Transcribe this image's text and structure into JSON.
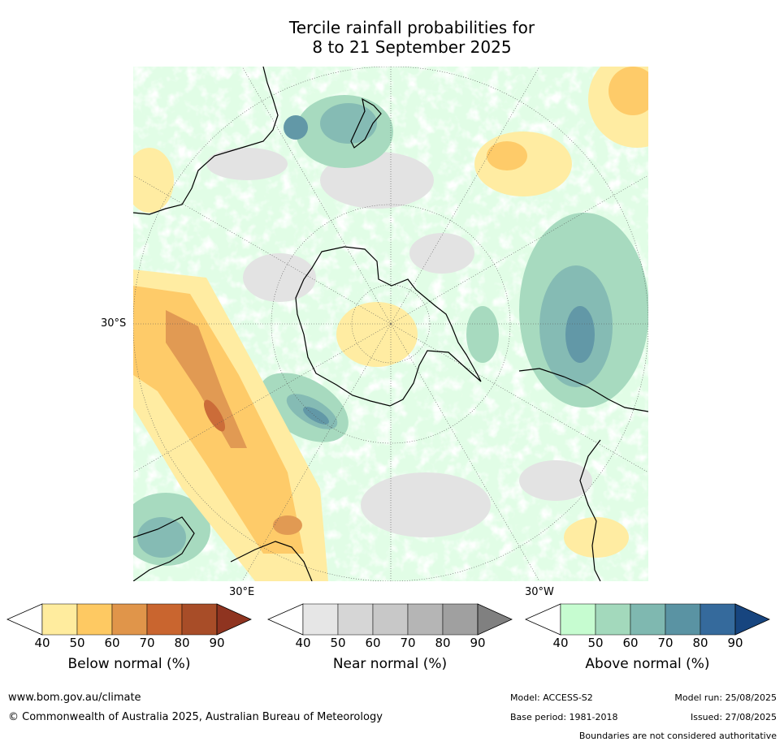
{
  "title": {
    "line1": "Tercile rainfall probabilities for",
    "line2": "8 to 21 September 2025"
  },
  "map": {
    "projection": "south-polar-stereographic",
    "lat_labels": [
      "30°S"
    ],
    "lon_labels": [
      "30°E",
      "30°W"
    ],
    "land_outline_color": "#000000",
    "graticule_color": "#555555"
  },
  "legends": [
    {
      "title": "Below normal (%)",
      "ticks": [
        "40",
        "50",
        "60",
        "70",
        "80",
        "90"
      ],
      "colors": [
        "#ffffff",
        "#ffec9e",
        "#fec962",
        "#e0954a",
        "#c9652f",
        "#a84d28",
        "#8f3420"
      ]
    },
    {
      "title": "Near normal (%)",
      "ticks": [
        "40",
        "50",
        "60",
        "70",
        "80",
        "90"
      ],
      "colors": [
        "#ffffff",
        "#e6e6e6",
        "#d6d6d6",
        "#c8c8c8",
        "#b5b5b5",
        "#a0a0a0",
        "#808080"
      ]
    },
    {
      "title": "Above normal (%)",
      "ticks": [
        "40",
        "50",
        "60",
        "70",
        "80",
        "90"
      ],
      "colors": [
        "#ffffff",
        "#c6fcd0",
        "#a3d9bc",
        "#7fb8b0",
        "#5a93a3",
        "#356a9c",
        "#17457f"
      ]
    }
  ],
  "footer": {
    "website": "www.bom.gov.au/climate",
    "copyright": "© Commonwealth of Australia 2025, Australian Bureau of Meteorology",
    "model": "Model: ACCESS-S2",
    "model_run": "Model run: 25/08/2025",
    "base_period": "Base period: 1981-2018",
    "issued": "Issued: 27/08/2025",
    "disclaimer": "Boundaries are not considered authoritative"
  }
}
